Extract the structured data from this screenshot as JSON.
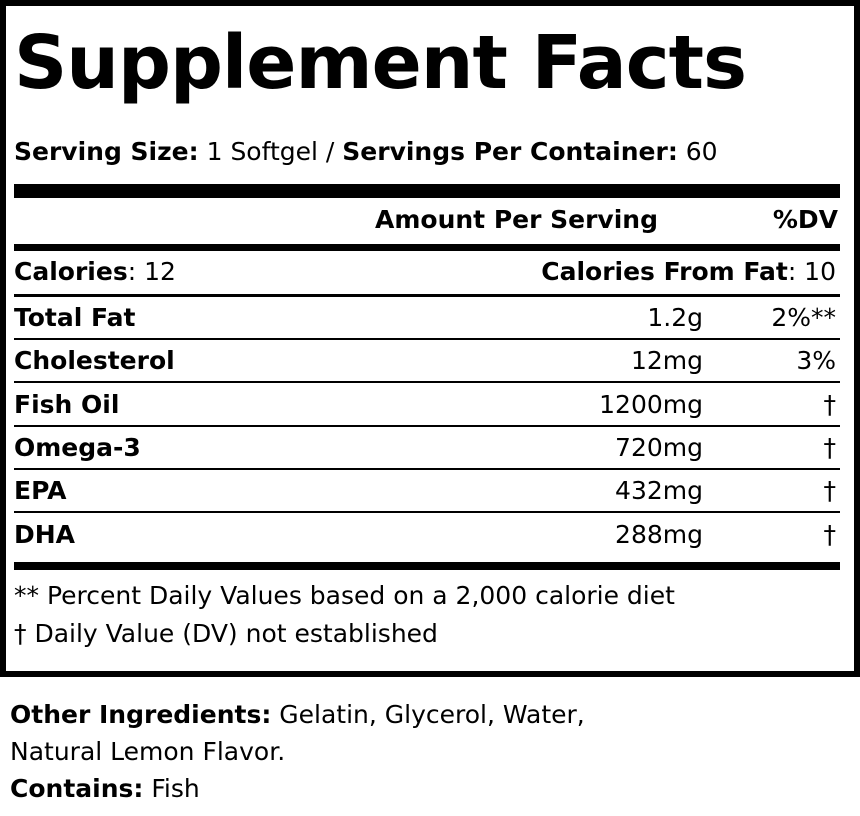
{
  "title": "Supplement Facts",
  "serving": {
    "size_label": "Serving Size:",
    "size_value": " 1 Softgel / ",
    "per_container_label": "Servings Per Container:",
    "per_container_value": " 60"
  },
  "header": {
    "amount": "Amount Per Serving",
    "dv": "%DV"
  },
  "calories": {
    "label": "Calories",
    "value": ": 12",
    "fat_label": "Calories From Fat",
    "fat_value": ": 10"
  },
  "nutrients": [
    {
      "name": "Total Fat",
      "amount": "1.2g",
      "dv": "2%**"
    },
    {
      "name": "Cholesterol",
      "amount": "12mg",
      "dv": "3%"
    },
    {
      "name": "Fish Oil",
      "amount": "1200mg",
      "dv": "†"
    },
    {
      "name": "Omega-3",
      "amount": "720mg",
      "dv": "†"
    },
    {
      "name": "EPA",
      "amount": "432mg",
      "dv": "†"
    },
    {
      "name": "DHA",
      "amount": "288mg",
      "dv": "†"
    }
  ],
  "footnotes": [
    "** Percent Daily Values based on a 2,000 calorie diet",
    "† Daily Value (DV) not established"
  ],
  "other_ingredients": {
    "label": "Other Ingredients:",
    "value_line1": " Gelatin, Glycerol, Water,",
    "value_line2": "Natural Lemon Flavor."
  },
  "contains": {
    "label": "Contains:",
    "value": " Fish"
  }
}
